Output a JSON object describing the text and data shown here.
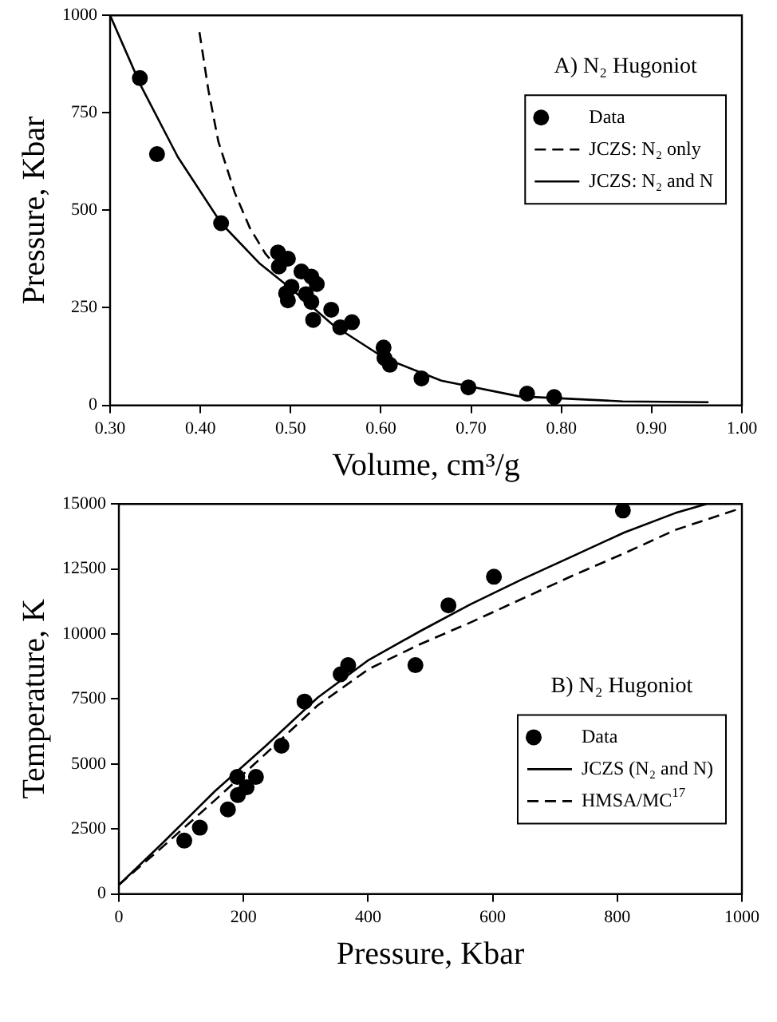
{
  "chart_data": [
    {
      "type": "scatter",
      "xlabel": "Volume, cm³/g",
      "ylabel": "Pressure, Kbar",
      "legend_title": "A) N₂ Hugoniot",
      "legend": "top right",
      "grid": false,
      "xlim": [
        0.3,
        1.0
      ],
      "xticks": [
        {
          "value": 0.3,
          "label": "0.30"
        },
        {
          "value": 0.4,
          "label": "0.40"
        },
        {
          "value": 0.5,
          "label": "0.50"
        },
        {
          "value": 0.6,
          "label": "0.60"
        },
        {
          "value": 0.7,
          "label": "0.70"
        },
        {
          "value": 0.8,
          "label": "0.80"
        },
        {
          "value": 0.9,
          "label": "0.90"
        },
        {
          "value": 1.0,
          "label": "1.00"
        }
      ],
      "ylim": [
        0,
        1000
      ],
      "yticks": [
        0,
        250,
        500,
        750,
        1000
      ],
      "series": [
        {
          "name": "Data",
          "marker": "circle",
          "color": "#000000",
          "x": [
            0.333,
            0.352,
            0.423,
            0.486,
            0.487,
            0.497,
            0.501,
            0.495,
            0.497,
            0.512,
            0.517,
            0.523,
            0.523,
            0.529,
            0.525,
            0.545,
            0.555,
            0.568,
            0.603,
            0.604,
            0.61,
            0.645,
            0.697,
            0.762,
            0.792
          ],
          "values": [
            839,
            644,
            467,
            392,
            356,
            376,
            304,
            287,
            269,
            343,
            285,
            265,
            330,
            311,
            219,
            245,
            200,
            213,
            148,
            121,
            104,
            69,
            46,
            30,
            21
          ]
        },
        {
          "name": "JCZS: N₂ only",
          "type": "line",
          "marker": "none",
          "line_style": "dashed",
          "color": "#000000",
          "x": [
            0.399,
            0.409,
            0.42,
            0.438,
            0.455,
            0.472,
            0.484
          ],
          "values": [
            957,
            807,
            676,
            546,
            454,
            389,
            356
          ]
        },
        {
          "name": "JCZS: N₂ and N",
          "type": "line",
          "marker": "none",
          "line_style": "solid",
          "color": "#000000",
          "x": [
            0.3,
            0.334,
            0.375,
            0.423,
            0.466,
            0.501,
            0.547,
            0.604,
            0.667,
            0.753,
            0.868,
            0.963
          ],
          "values": [
            1000,
            820,
            637,
            467,
            363,
            298,
            206,
            121,
            63,
            23,
            10,
            8
          ]
        }
      ]
    },
    {
      "type": "scatter",
      "xlabel": "Pressure, Kbar",
      "ylabel": "Temperature, K",
      "legend_title": "B) N₂ Hugoniot",
      "legend": "right",
      "grid": false,
      "xlim": [
        0,
        1000
      ],
      "xticks": [
        0,
        200,
        400,
        600,
        800,
        1000
      ],
      "ylim": [
        0,
        15000
      ],
      "yticks": [
        0,
        2500,
        5000,
        7500,
        10000,
        12500,
        15000
      ],
      "series": [
        {
          "name": "Data",
          "marker": "circle",
          "color": "#000000",
          "x": [
            105,
            130,
            175,
            190,
            191,
            205,
            220,
            261,
            298,
            356,
            368,
            476,
            529,
            602,
            809
          ],
          "values": [
            2050,
            2550,
            3250,
            4500,
            3800,
            4100,
            4500,
            5700,
            7400,
            8450,
            8800,
            8800,
            11100,
            12200,
            14750
          ]
        },
        {
          "name": "JCZS (N₂ and N)",
          "type": "line",
          "marker": "none",
          "line_style": "solid",
          "color": "#000000",
          "x": [
            0,
            72,
            154,
            236,
            319,
            401,
            483,
            565,
            647,
            729,
            811,
            893,
            943
          ],
          "values": [
            350,
            2000,
            3950,
            5700,
            7550,
            9000,
            10100,
            11150,
            12100,
            13000,
            13900,
            14650,
            15000
          ]
        },
        {
          "name": "HMSA/MC$^{17}$",
          "type": "line",
          "marker": "none",
          "line_style": "dashed",
          "color": "#000000",
          "x": [
            0,
            72,
            154,
            236,
            319,
            401,
            483,
            565,
            647,
            729,
            811,
            893,
            1000
          ],
          "values": [
            350,
            1850,
            3600,
            5400,
            7250,
            8650,
            9600,
            10450,
            11350,
            12250,
            13100,
            14000,
            14850
          ]
        }
      ]
    }
  ]
}
